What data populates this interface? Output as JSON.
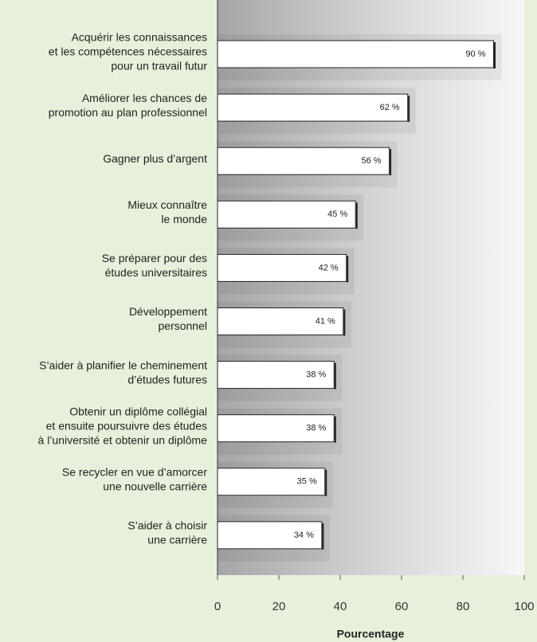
{
  "chart_data": {
    "type": "bar",
    "orientation": "horizontal",
    "categories": [
      [
        "Acquérir les connaissances",
        "et les compétences nécessaires",
        "pour un travail futur"
      ],
      [
        "Améliorer les chances de",
        "promotion au plan professionnel"
      ],
      [
        "Gagner plus d’argent"
      ],
      [
        "Mieux connaître",
        "le monde"
      ],
      [
        "Se préparer pour des",
        "études universitaires"
      ],
      [
        "Développement",
        "personnel"
      ],
      [
        "S’aider à planifier le cheminement",
        "d’études futures"
      ],
      [
        "Obtenir un diplôme collégial",
        "et ensuite poursuivre des études",
        "à l’université et obtenir un diplôme"
      ],
      [
        "Se recycler en vue d’amorcer",
        "une nouvelle carrière"
      ],
      [
        "S’aider à choisir",
        "une carrière"
      ]
    ],
    "values": [
      90,
      62,
      56,
      45,
      42,
      41,
      38,
      38,
      35,
      34
    ],
    "value_labels": [
      "90 %",
      "62 %",
      "56 %",
      "45 %",
      "42 %",
      "41 %",
      "38 %",
      "38 %",
      "35 %",
      "34 %"
    ],
    "color": "#ffffff",
    "xlim": [
      0,
      100
    ],
    "xticks": [
      0,
      20,
      40,
      60,
      80,
      100
    ],
    "x_label": "Pourcentage"
  }
}
